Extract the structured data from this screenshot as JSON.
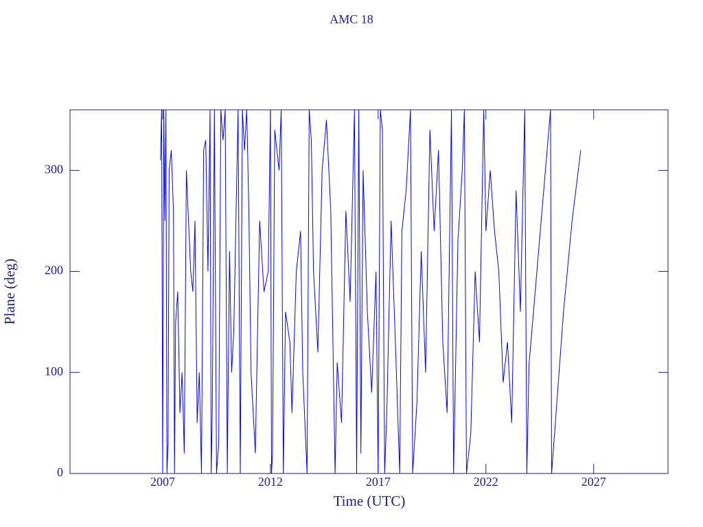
{
  "chart_data": {
    "type": "line",
    "title": "AMC 18",
    "x_label": "Time (UTC)",
    "y_label": "Plane (deg)",
    "color": "#0000ff",
    "xlim": [
      2002.7,
      2030.45
    ],
    "xticks": [
      2007,
      2012,
      2017,
      2022,
      2027
    ],
    "ylim": [
      0,
      360
    ],
    "yticks": [
      0,
      100,
      200,
      300
    ],
    "x": [
      2006.9,
      2006.95,
      2007.0,
      2007.05,
      2007.1,
      2007.15,
      2007.2,
      2007.25,
      2007.3,
      2007.4,
      2007.5,
      2007.55,
      2007.6,
      2007.7,
      2007.8,
      2007.9,
      2008.0,
      2008.1,
      2008.2,
      2008.3,
      2008.4,
      2008.5,
      2008.6,
      2008.7,
      2008.8,
      2008.9,
      2009.0,
      2009.1,
      2009.2,
      2009.25,
      2009.3,
      2009.4,
      2009.5,
      2009.6,
      2009.7,
      2009.8,
      2009.9,
      2010.0,
      2010.1,
      2010.2,
      2010.3,
      2010.5,
      2010.6,
      2010.7,
      2010.8,
      2010.9,
      2011.0,
      2011.1,
      2011.3,
      2011.5,
      2011.7,
      2011.9,
      2012.0,
      2012.05,
      2012.1,
      2012.2,
      2012.4,
      2012.5,
      2012.6,
      2012.7,
      2012.9,
      2013.0,
      2013.2,
      2013.4,
      2013.5,
      2013.7,
      2013.8,
      2013.9,
      2014.0,
      2014.2,
      2014.4,
      2014.6,
      2014.8,
      2015.0,
      2015.1,
      2015.3,
      2015.5,
      2015.7,
      2015.9,
      2016.0,
      2016.1,
      2016.2,
      2016.3,
      2016.5,
      2016.7,
      2016.9,
      2017.0,
      2017.1,
      2017.2,
      2017.3,
      2017.4,
      2017.6,
      2017.8,
      2018.0,
      2018.1,
      2018.3,
      2018.5,
      2018.6,
      2018.8,
      2019.0,
      2019.2,
      2019.4,
      2019.6,
      2019.8,
      2020.0,
      2020.2,
      2020.4,
      2020.5,
      2020.7,
      2020.9,
      2021.0,
      2021.1,
      2021.3,
      2021.5,
      2021.7,
      2021.9,
      2022.0,
      2022.2,
      2022.4,
      2022.6,
      2022.8,
      2023.0,
      2023.2,
      2023.4,
      2023.6,
      2023.8,
      2023.9,
      2024.0,
      2025.0,
      2025.05,
      2025.6,
      2026.0,
      2026.4
    ],
    "values": [
      310,
      360,
      0,
      360,
      250,
      360,
      0,
      30,
      300,
      320,
      260,
      0,
      150,
      180,
      60,
      100,
      20,
      300,
      250,
      200,
      180,
      250,
      50,
      100,
      0,
      320,
      330,
      200,
      360,
      0,
      60,
      360,
      0,
      30,
      360,
      330,
      360,
      0,
      220,
      100,
      140,
      360,
      0,
      360,
      320,
      360,
      260,
      100,
      20,
      250,
      180,
      200,
      360,
      0,
      20,
      340,
      300,
      360,
      0,
      160,
      130,
      60,
      200,
      240,
      100,
      0,
      360,
      330,
      200,
      120,
      300,
      350,
      260,
      0,
      110,
      50,
      260,
      170,
      360,
      0,
      360,
      20,
      300,
      160,
      80,
      200,
      0,
      360,
      340,
      0,
      60,
      250,
      130,
      0,
      240,
      280,
      360,
      0,
      70,
      220,
      100,
      340,
      240,
      320,
      130,
      60,
      360,
      0,
      230,
      300,
      360,
      0,
      40,
      200,
      130,
      360,
      240,
      300,
      240,
      200,
      90,
      130,
      50,
      280,
      160,
      360,
      0,
      108,
      360,
      0,
      160,
      250,
      320
    ]
  }
}
